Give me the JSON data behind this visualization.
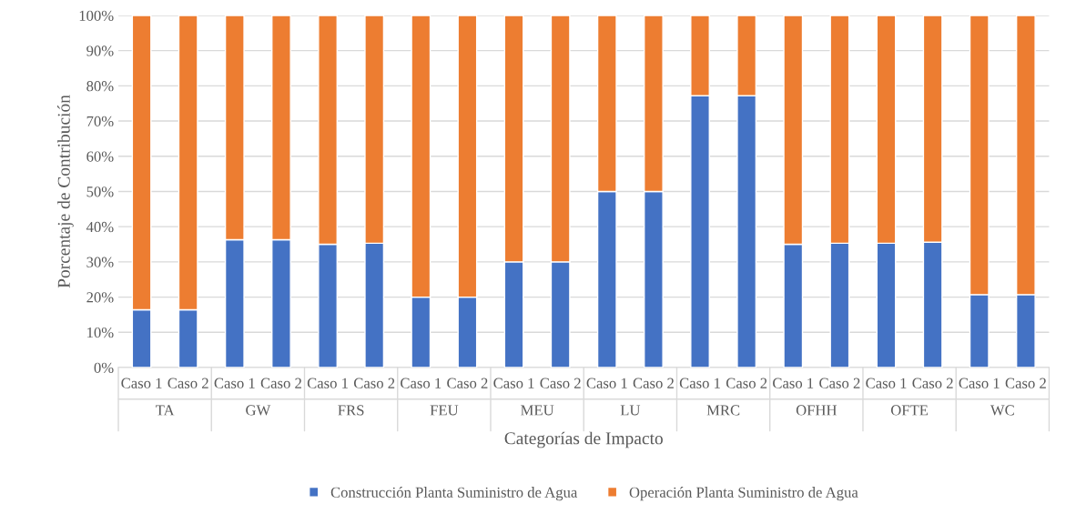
{
  "chart_data": {
    "type": "bar",
    "stacked": true,
    "xlabel": "Categorías de Impacto",
    "ylabel": "Porcentaje de Contribución",
    "categories": [
      "Caso 1",
      "Caso 2",
      "Caso 1",
      "Caso 2",
      "Caso 1",
      "Caso 2",
      "Caso 1",
      "Caso 2",
      "Caso 1",
      "Caso 2",
      "Caso 1",
      "Caso 2",
      "Caso 1",
      "Caso 2",
      "Caso 1",
      "Caso 2",
      "Caso 1",
      "Caso 2",
      "Caso 1",
      "Caso 2"
    ],
    "annotations": [
      "TA",
      "GW",
      "FRS",
      "FEU",
      "MEU",
      "LU",
      "MRC",
      "OFHH",
      "OFTE",
      "WC"
    ],
    "series": [
      {
        "name": "Construcción Planta Suministro de Agua",
        "color": "#4472c4",
        "values": [
          16.4,
          16.4,
          36.3,
          36.3,
          35.0,
          35.3,
          20.0,
          20.0,
          30.0,
          30.0,
          50.0,
          50.0,
          77.2,
          77.2,
          35.0,
          35.3,
          35.3,
          35.6,
          20.7,
          20.7
        ]
      },
      {
        "name": "Operación Planta Suministro de Agua",
        "color": "#ed7d31",
        "values": [
          83.6,
          83.6,
          63.7,
          63.7,
          65.0,
          64.7,
          80.0,
          80.0,
          70.0,
          70.0,
          50.0,
          50.0,
          22.8,
          22.8,
          65.0,
          64.7,
          64.7,
          64.4,
          79.3,
          79.3
        ]
      }
    ],
    "ylim": [
      0,
      100
    ],
    "yticks": [
      {
        "value": 0,
        "label": "0%"
      },
      {
        "value": 10,
        "label": "10%"
      },
      {
        "value": 20,
        "label": "20%"
      },
      {
        "value": 30,
        "label": "30%"
      },
      {
        "value": 40,
        "label": "40%"
      },
      {
        "value": 50,
        "label": "50%"
      },
      {
        "value": 60,
        "label": "60%"
      },
      {
        "value": 70,
        "label": "70%"
      },
      {
        "value": 80,
        "label": "80%"
      },
      {
        "value": 90,
        "label": "90%"
      },
      {
        "value": 100,
        "label": "100%"
      }
    ],
    "grid": "y",
    "legend": "bottom"
  }
}
